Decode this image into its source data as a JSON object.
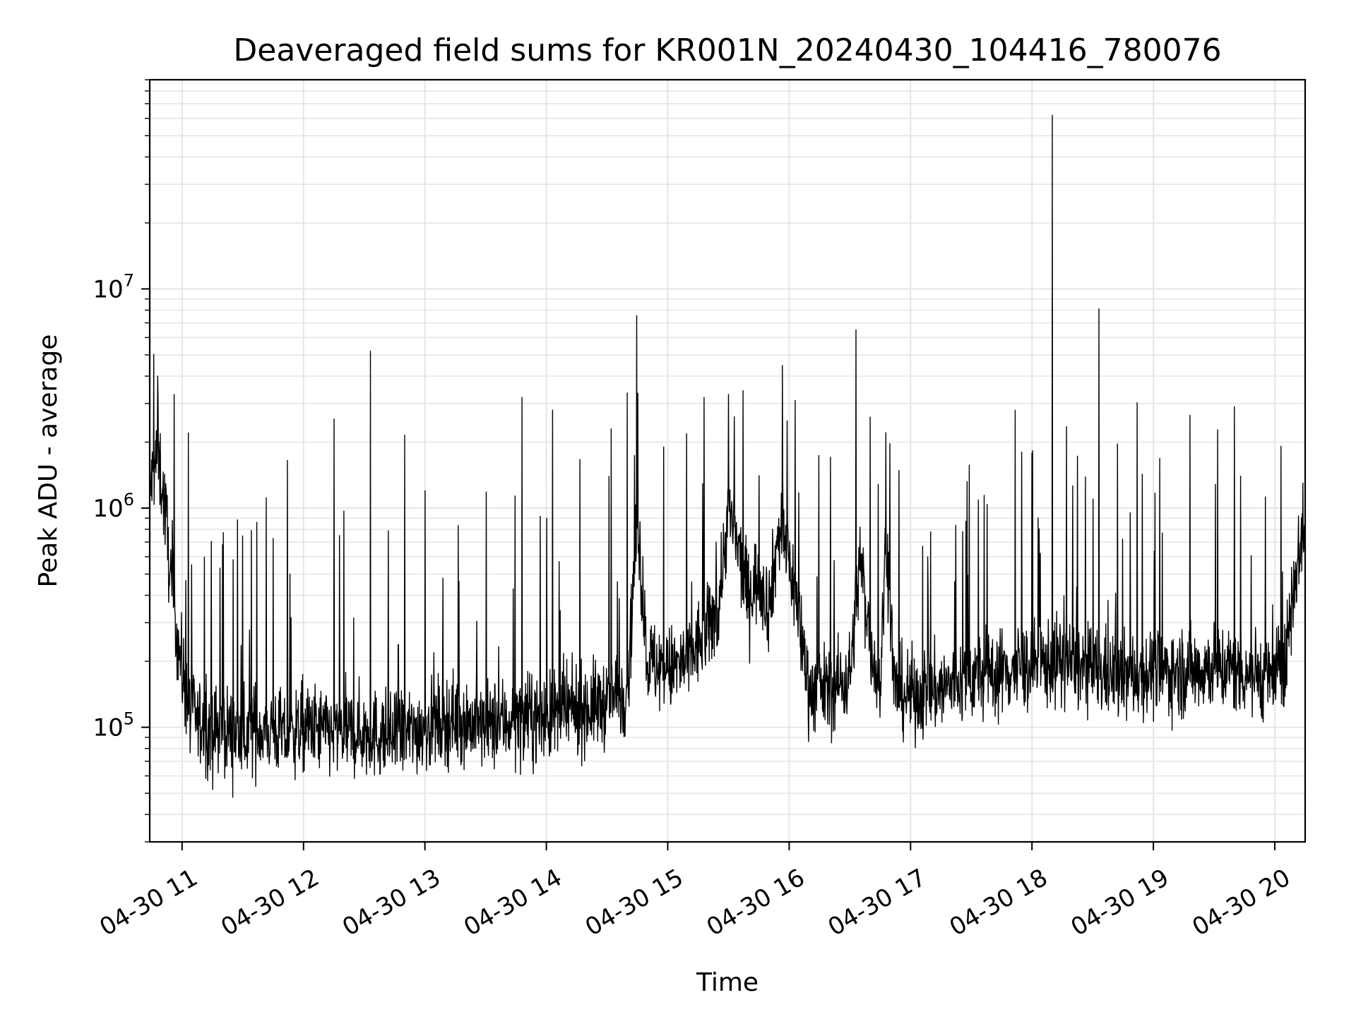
{
  "chart_data": {
    "type": "line",
    "title": "Deaveraged field sums for KR001N_20240430_104416_780076",
    "xlabel": "Time",
    "ylabel": "Peak ADU - average",
    "y_scale": "log",
    "ylim": [
      30000,
      90000000
    ],
    "xlim": [
      "2024-04-30 10:44",
      "2024-04-30 20:15"
    ],
    "grid": true,
    "line_color": "#000000",
    "grid_color": "#e5e5e5",
    "x_ticks": [
      {
        "value": "2024-04-30 11:00",
        "label": "04-30 11"
      },
      {
        "value": "2024-04-30 12:00",
        "label": "04-30 12"
      },
      {
        "value": "2024-04-30 13:00",
        "label": "04-30 13"
      },
      {
        "value": "2024-04-30 14:00",
        "label": "04-30 14"
      },
      {
        "value": "2024-04-30 15:00",
        "label": "04-30 15"
      },
      {
        "value": "2024-04-30 16:00",
        "label": "04-30 16"
      },
      {
        "value": "2024-04-30 17:00",
        "label": "04-30 17"
      },
      {
        "value": "2024-04-30 18:00",
        "label": "04-30 18"
      },
      {
        "value": "2024-04-30 19:00",
        "label": "04-30 19"
      },
      {
        "value": "2024-04-30 20:00",
        "label": "04-30 20"
      }
    ],
    "y_ticks": [
      {
        "value": 100000,
        "base": "10",
        "exp": "5"
      },
      {
        "value": 1000000,
        "base": "10",
        "exp": "6"
      },
      {
        "value": 10000000,
        "base": "10",
        "exp": "7"
      }
    ],
    "series": [
      {
        "x": [
          "2024-04-30 10:44",
          "2024-04-30 10:48",
          "2024-04-30 10:52",
          "2024-04-30 10:55",
          "2024-04-30 10:58",
          "2024-04-30 11:00",
          "2024-04-30 11:04",
          "2024-04-30 11:10",
          "2024-04-30 11:15",
          "2024-04-30 11:20",
          "2024-04-30 11:25",
          "2024-04-30 11:30",
          "2024-04-30 11:35",
          "2024-04-30 11:40",
          "2024-04-30 11:45",
          "2024-04-30 11:50",
          "2024-04-30 11:55",
          "2024-04-30 12:00",
          "2024-04-30 12:15",
          "2024-04-30 12:30",
          "2024-04-30 12:45",
          "2024-04-30 13:00",
          "2024-04-30 13:15",
          "2024-04-30 13:30",
          "2024-04-30 13:45",
          "2024-04-30 14:00",
          "2024-04-30 14:15",
          "2024-04-30 14:30",
          "2024-04-30 14:40",
          "2024-04-30 14:45",
          "2024-04-30 14:50",
          "2024-04-30 15:00",
          "2024-04-30 15:10",
          "2024-04-30 15:20",
          "2024-04-30 15:25",
          "2024-04-30 15:30",
          "2024-04-30 15:40",
          "2024-04-30 15:45",
          "2024-04-30 15:50",
          "2024-04-30 15:55",
          "2024-04-30 16:00",
          "2024-04-30 16:05",
          "2024-04-30 16:10",
          "2024-04-30 16:20",
          "2024-04-30 16:30",
          "2024-04-30 16:35",
          "2024-04-30 16:40",
          "2024-04-30 16:45",
          "2024-04-30 16:48",
          "2024-04-30 16:52",
          "2024-04-30 17:00",
          "2024-04-30 17:15",
          "2024-04-30 17:30",
          "2024-04-30 17:45",
          "2024-04-30 18:00",
          "2024-04-30 18:15",
          "2024-04-30 18:30",
          "2024-04-30 18:45",
          "2024-04-30 19:00",
          "2024-04-30 19:15",
          "2024-04-30 19:30",
          "2024-04-30 19:45",
          "2024-04-30 20:00",
          "2024-04-30 20:05",
          "2024-04-30 20:10",
          "2024-04-30 20:15"
        ],
        "y": [
          1200000,
          1800000,
          900000,
          400000,
          250000,
          180000,
          120000,
          100000,
          95000,
          100000,
          95000,
          90000,
          100000,
          95000,
          100000,
          90000,
          95000,
          100000,
          95000,
          95000,
          90000,
          100000,
          110000,
          100000,
          110000,
          110000,
          120000,
          130000,
          150000,
          900000,
          200000,
          180000,
          200000,
          280000,
          350000,
          1000000,
          400000,
          500000,
          350000,
          800000,
          600000,
          300000,
          150000,
          150000,
          170000,
          600000,
          250000,
          150000,
          800000,
          150000,
          140000,
          150000,
          170000,
          180000,
          190000,
          200000,
          180000,
          170000,
          180000,
          180000,
          190000,
          180000,
          170000,
          200000,
          500000,
          900000
        ]
      }
    ],
    "spikes": [
      {
        "x": "2024-04-30 10:48",
        "y": 4000000
      },
      {
        "x": "2024-04-30 10:56",
        "y": 3300000
      },
      {
        "x": "2024-04-30 11:03",
        "y": 2200000
      },
      {
        "x": "2024-04-30 11:20",
        "y": 680000
      },
      {
        "x": "2024-04-30 11:37",
        "y": 860000
      },
      {
        "x": "2024-04-30 11:52",
        "y": 1650000
      },
      {
        "x": "2024-04-30 12:15",
        "y": 2550000
      },
      {
        "x": "2024-04-30 12:20",
        "y": 970000
      },
      {
        "x": "2024-04-30 12:33",
        "y": 5200000
      },
      {
        "x": "2024-04-30 12:50",
        "y": 2150000
      },
      {
        "x": "2024-04-30 13:00",
        "y": 1200000
      },
      {
        "x": "2024-04-30 13:48",
        "y": 3200000
      },
      {
        "x": "2024-04-30 14:03",
        "y": 2800000
      },
      {
        "x": "2024-04-30 14:32",
        "y": 2300000
      },
      {
        "x": "2024-04-30 14:40",
        "y": 3350000
      },
      {
        "x": "2024-04-30 14:58",
        "y": 1900000
      },
      {
        "x": "2024-04-30 15:18",
        "y": 3200000
      },
      {
        "x": "2024-04-30 15:30",
        "y": 3300000
      },
      {
        "x": "2024-04-30 15:59",
        "y": 2500000
      },
      {
        "x": "2024-04-30 16:03",
        "y": 3100000
      },
      {
        "x": "2024-04-30 16:33",
        "y": 6500000
      },
      {
        "x": "2024-04-30 16:40",
        "y": 2600000
      },
      {
        "x": "2024-04-30 17:10",
        "y": 780000
      },
      {
        "x": "2024-04-30 17:28",
        "y": 1320000
      },
      {
        "x": "2024-04-30 17:55",
        "y": 1800000
      },
      {
        "x": "2024-04-30 18:10",
        "y": 62000000
      },
      {
        "x": "2024-04-30 18:17",
        "y": 2350000
      },
      {
        "x": "2024-04-30 18:33",
        "y": 8100000
      },
      {
        "x": "2024-04-30 19:18",
        "y": 2650000
      },
      {
        "x": "2024-04-30 19:40",
        "y": 2900000
      }
    ]
  }
}
